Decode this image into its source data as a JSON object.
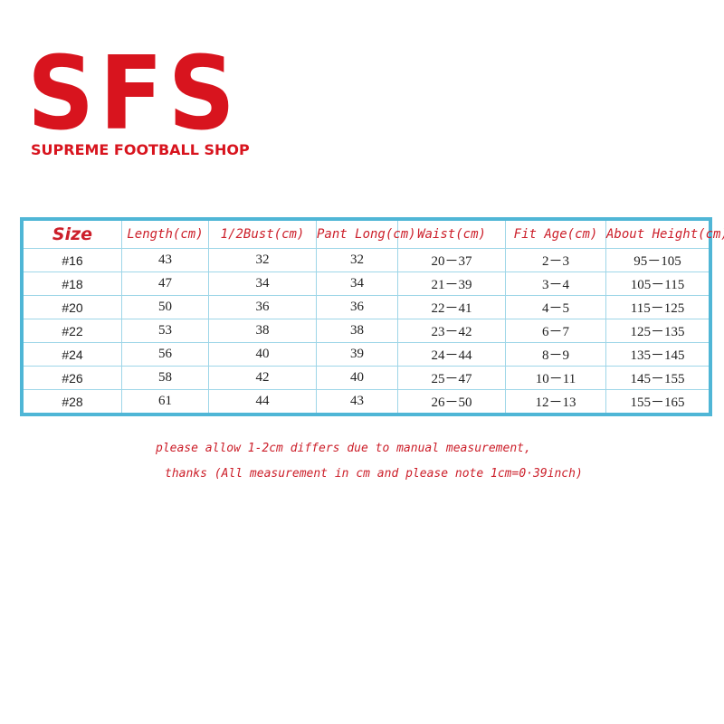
{
  "header": {
    "logo": "SFS",
    "subtitle": "SUPREME FOOTBALL SHOP"
  },
  "table": {
    "columns": [
      "Size",
      "Length(cm)",
      "1/2Bust(cm)",
      "Pant Long(cm)",
      "Waist(cm)",
      "Fit Age(cm)",
      "About Height(cm)"
    ],
    "rows": [
      [
        "#16",
        "43",
        "32",
        "32",
        "20－37",
        "2－3",
        "95－105"
      ],
      [
        "#18",
        "47",
        "34",
        "34",
        "21－39",
        "3－4",
        "105－115"
      ],
      [
        "#20",
        "50",
        "36",
        "36",
        "22－41",
        "4－5",
        "115－125"
      ],
      [
        "#22",
        "53",
        "38",
        "38",
        "23－42",
        "6－7",
        "125－135"
      ],
      [
        "#24",
        "56",
        "40",
        "39",
        "24－44",
        "8－9",
        "135－145"
      ],
      [
        "#26",
        "58",
        "42",
        "40",
        "25－47",
        "10－11",
        "145－155"
      ],
      [
        "#28",
        "61",
        "44",
        "43",
        "26－50",
        "12－13",
        "155－165"
      ]
    ]
  },
  "note": [
    "please allow 1-2cm differs due to manual measurement,",
    "thanks (All measurement in cm and please note 1cm=0·39inch)"
  ]
}
